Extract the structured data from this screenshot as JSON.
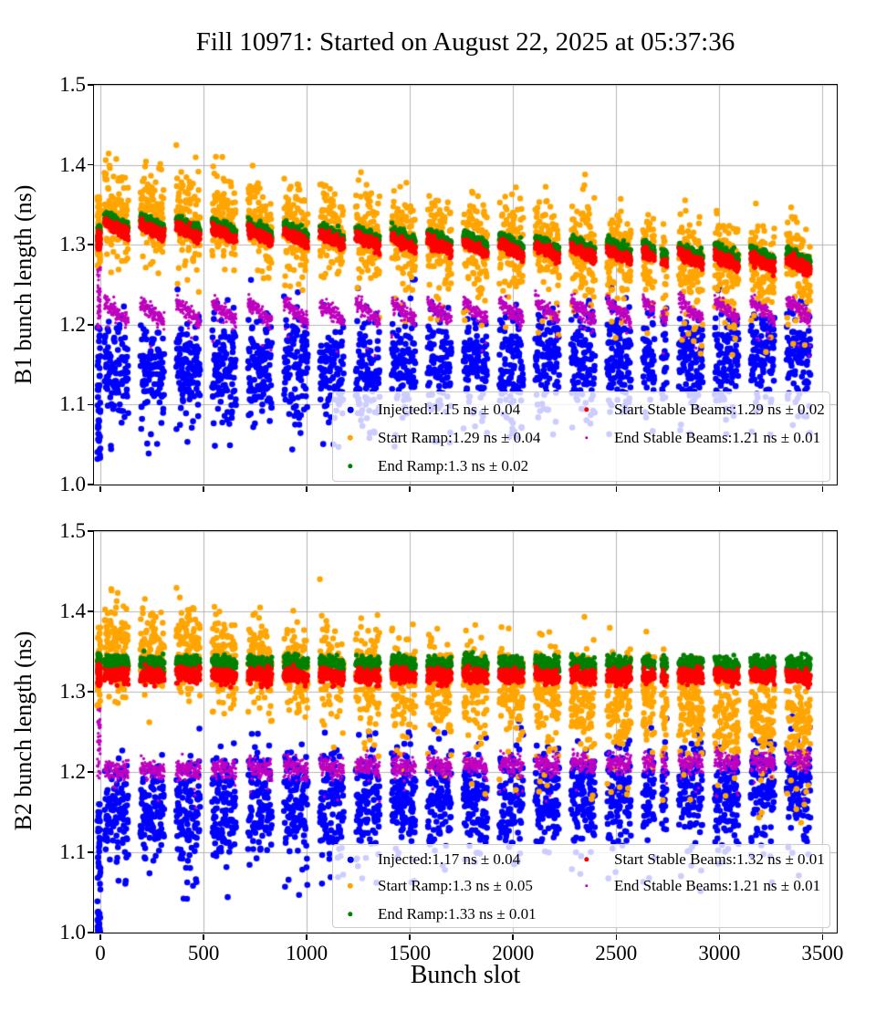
{
  "figure": {
    "title": "Fill 10971: Started on August 22, 2025 at 05:37:36",
    "xlabel": "Bunch slot",
    "background": "#ffffff",
    "grid_color": "#b4b4b4",
    "spine_color": "#000000",
    "legend_background": "rgba(255,255,255,0.8)",
    "legend_border": "#cccccc"
  },
  "chart_data": [
    {
      "type": "scatter",
      "title": "",
      "ylabel": "B1 bunch length (ns)",
      "xlabel": "Bunch slot",
      "ylim": [
        1.0,
        1.5
      ],
      "yticks": [
        "1.0",
        "1.1",
        "1.2",
        "1.3",
        "1.4",
        "1.5"
      ],
      "xlim": [
        -31,
        3569
      ],
      "xticks": [
        0,
        500,
        1000,
        1500,
        2000,
        2500,
        3000,
        3500
      ],
      "grid": true,
      "legend_location": "lower right, 2 columns",
      "trains": {
        "initial_strip": [
          -14,
          0
        ],
        "strip_mult": 3,
        "first": 20,
        "pitch": 174,
        "width": 120,
        "count": 20,
        "subbatch_on": 36,
        "subbatch_period": 40,
        "hole": [
          2686,
          2720
        ]
      },
      "series": [
        {
          "name": "Injected",
          "label": "Injected:1.15 ns ± 0.04",
          "mean_ns": 1.15,
          "std_ns": 0.04,
          "color": "#0000ff",
          "marker_r": 3.3,
          "gen": {
            "base": 1.142,
            "gslope": 0.022,
            "tslope": 0,
            "sigma": 0.031,
            "strip": [
              1.03,
              1.2
            ],
            "clip": [
              1.015,
              1.31
            ],
            "low_tail": {
              "frac": 0.035,
              "off": [
                -0.105,
                -0.04
              ],
              "min_u": 0
            }
          }
        },
        {
          "name": "Start Ramp",
          "label": "Start Ramp:1.29 ns ± 0.04",
          "mean_ns": 1.29,
          "std_ns": 0.04,
          "color": "#ffa500",
          "marker_r": 3.2,
          "gen": {
            "base": 1.352,
            "gslope": -0.075,
            "tslope": -0.02,
            "sigma": 0.029,
            "strip": [
              1.27,
              1.36
            ],
            "clip": [
              1.12,
              1.43
            ],
            "low_tail": {
              "frac": 0.05,
              "off": [
                -0.11,
                -0.03
              ],
              "min_u": 0.35
            }
          }
        },
        {
          "name": "End Ramp",
          "label": "End Ramp:1.3 ns ± 0.02",
          "mean_ns": 1.3,
          "std_ns": 0.02,
          "color": "#008000",
          "marker_r": 2.7,
          "gen": {
            "base": 1.3365,
            "gslope": -0.047,
            "tslope": -0.0135,
            "sigma": 0.0034,
            "strip": [
              1.3,
              1.325
            ],
            "clip": [
              1.1,
              1.45
            ]
          }
        },
        {
          "name": "Start Stable Beams",
          "label": "Start Stable Beams:1.29 ns ± 0.02",
          "mean_ns": 1.29,
          "std_ns": 0.02,
          "color": "#ff0000",
          "marker_r": 2.7,
          "gen": {
            "base": 1.3285,
            "gslope": -0.049,
            "tslope": -0.0135,
            "sigma": 0.0034,
            "strip": [
              1.293,
              1.318
            ],
            "clip": [
              1.1,
              1.45
            ]
          }
        },
        {
          "name": "End Stable Beams",
          "label": "End Stable Beams:1.21 ns ± 0.01",
          "mean_ns": 1.21,
          "std_ns": 0.01,
          "color": "#bf00bf",
          "marker_r": 1.7,
          "gen": {
            "base": 1.2265,
            "gslope": 0.004,
            "tslope": -0.024,
            "sigma": 0.0048,
            "strip": [
              1.19,
              1.272
            ],
            "clip": [
              1.1,
              1.3
            ],
            "low_tail": {
              "frac": 0.02,
              "off": [
                -0.05,
                -0.012
              ],
              "min_u": 0
            }
          }
        }
      ]
    },
    {
      "type": "scatter",
      "title": "",
      "ylabel": "B2 bunch length (ns)",
      "xlabel": "Bunch slot",
      "ylim": [
        1.0,
        1.5
      ],
      "yticks": [
        "1.0",
        "1.1",
        "1.2",
        "1.3",
        "1.4",
        "1.5"
      ],
      "xlim": [
        -31,
        3569
      ],
      "xticks": [
        0,
        500,
        1000,
        1500,
        2000,
        2500,
        3000,
        3500
      ],
      "grid": true,
      "legend_location": "lower right, 2 columns",
      "trains": {
        "initial_strip": [
          -14,
          0
        ],
        "strip_mult": 3,
        "first": 20,
        "pitch": 174,
        "width": 120,
        "count": 20,
        "subbatch_on": 36,
        "subbatch_period": 40,
        "hole": [
          2686,
          2720
        ]
      },
      "series": [
        {
          "name": "Injected",
          "label": "Injected:1.17 ns ± 0.04",
          "mean_ns": 1.17,
          "std_ns": 0.04,
          "color": "#0000ff",
          "marker_r": 3.3,
          "gen": {
            "base": 1.153,
            "gslope": 0.026,
            "tslope": 0,
            "sigma": 0.033,
            "strip": [
              1.0,
              1.16
            ],
            "clip": [
              1.0,
              1.3
            ],
            "low_tail": {
              "frac": 0.03,
              "off": [
                -0.115,
                -0.045
              ],
              "min_u": 0
            }
          }
        },
        {
          "name": "Start Ramp",
          "label": "Start Ramp:1.3 ns ± 0.05",
          "mean_ns": 1.3,
          "std_ns": 0.05,
          "color": "#ffa500",
          "marker_r": 3.2,
          "gen": {
            "base": 1.362,
            "gslope": -0.093,
            "tslope": -0.012,
            "sigma": 0.03,
            "strip": [
              1.28,
              1.38
            ],
            "clip": [
              1.05,
              1.44
            ],
            "low_tail": {
              "frac": 0.07,
              "off": [
                -0.135,
                -0.03
              ],
              "min_u": 0.3
            }
          }
        },
        {
          "name": "End Ramp",
          "label": "End Ramp:1.33 ns ± 0.01",
          "mean_ns": 1.33,
          "std_ns": 0.01,
          "color": "#008000",
          "marker_r": 2.7,
          "gen": {
            "base": 1.337,
            "gslope": -0.001,
            "tslope": -0.003,
            "sigma": 0.0045,
            "strip": [
              1.322,
              1.35
            ],
            "clip": [
              1.1,
              1.45
            ]
          }
        },
        {
          "name": "Start Stable Beams",
          "label": "Start Stable Beams:1.32 ns ± 0.01",
          "mean_ns": 1.32,
          "std_ns": 0.01,
          "color": "#ff0000",
          "marker_r": 2.7,
          "gen": {
            "base": 1.3215,
            "gslope": -0.001,
            "tslope": -0.003,
            "sigma": 0.0045,
            "strip": [
              1.307,
              1.335
            ],
            "clip": [
              1.1,
              1.45
            ]
          }
        },
        {
          "name": "End Stable Beams",
          "label": "End Stable Beams:1.21 ns ± 0.01",
          "mean_ns": 1.21,
          "std_ns": 0.01,
          "color": "#bf00bf",
          "marker_r": 1.7,
          "gen": {
            "base": 1.2035,
            "gslope": 0.013,
            "tslope": -0.005,
            "sigma": 0.0062,
            "strip": [
              1.19,
              1.28
            ],
            "clip": [
              1.1,
              1.3
            ],
            "low_tail": {
              "frac": 0.015,
              "off": [
                -0.05,
                -0.012
              ],
              "min_u": 0
            }
          }
        }
      ]
    }
  ]
}
